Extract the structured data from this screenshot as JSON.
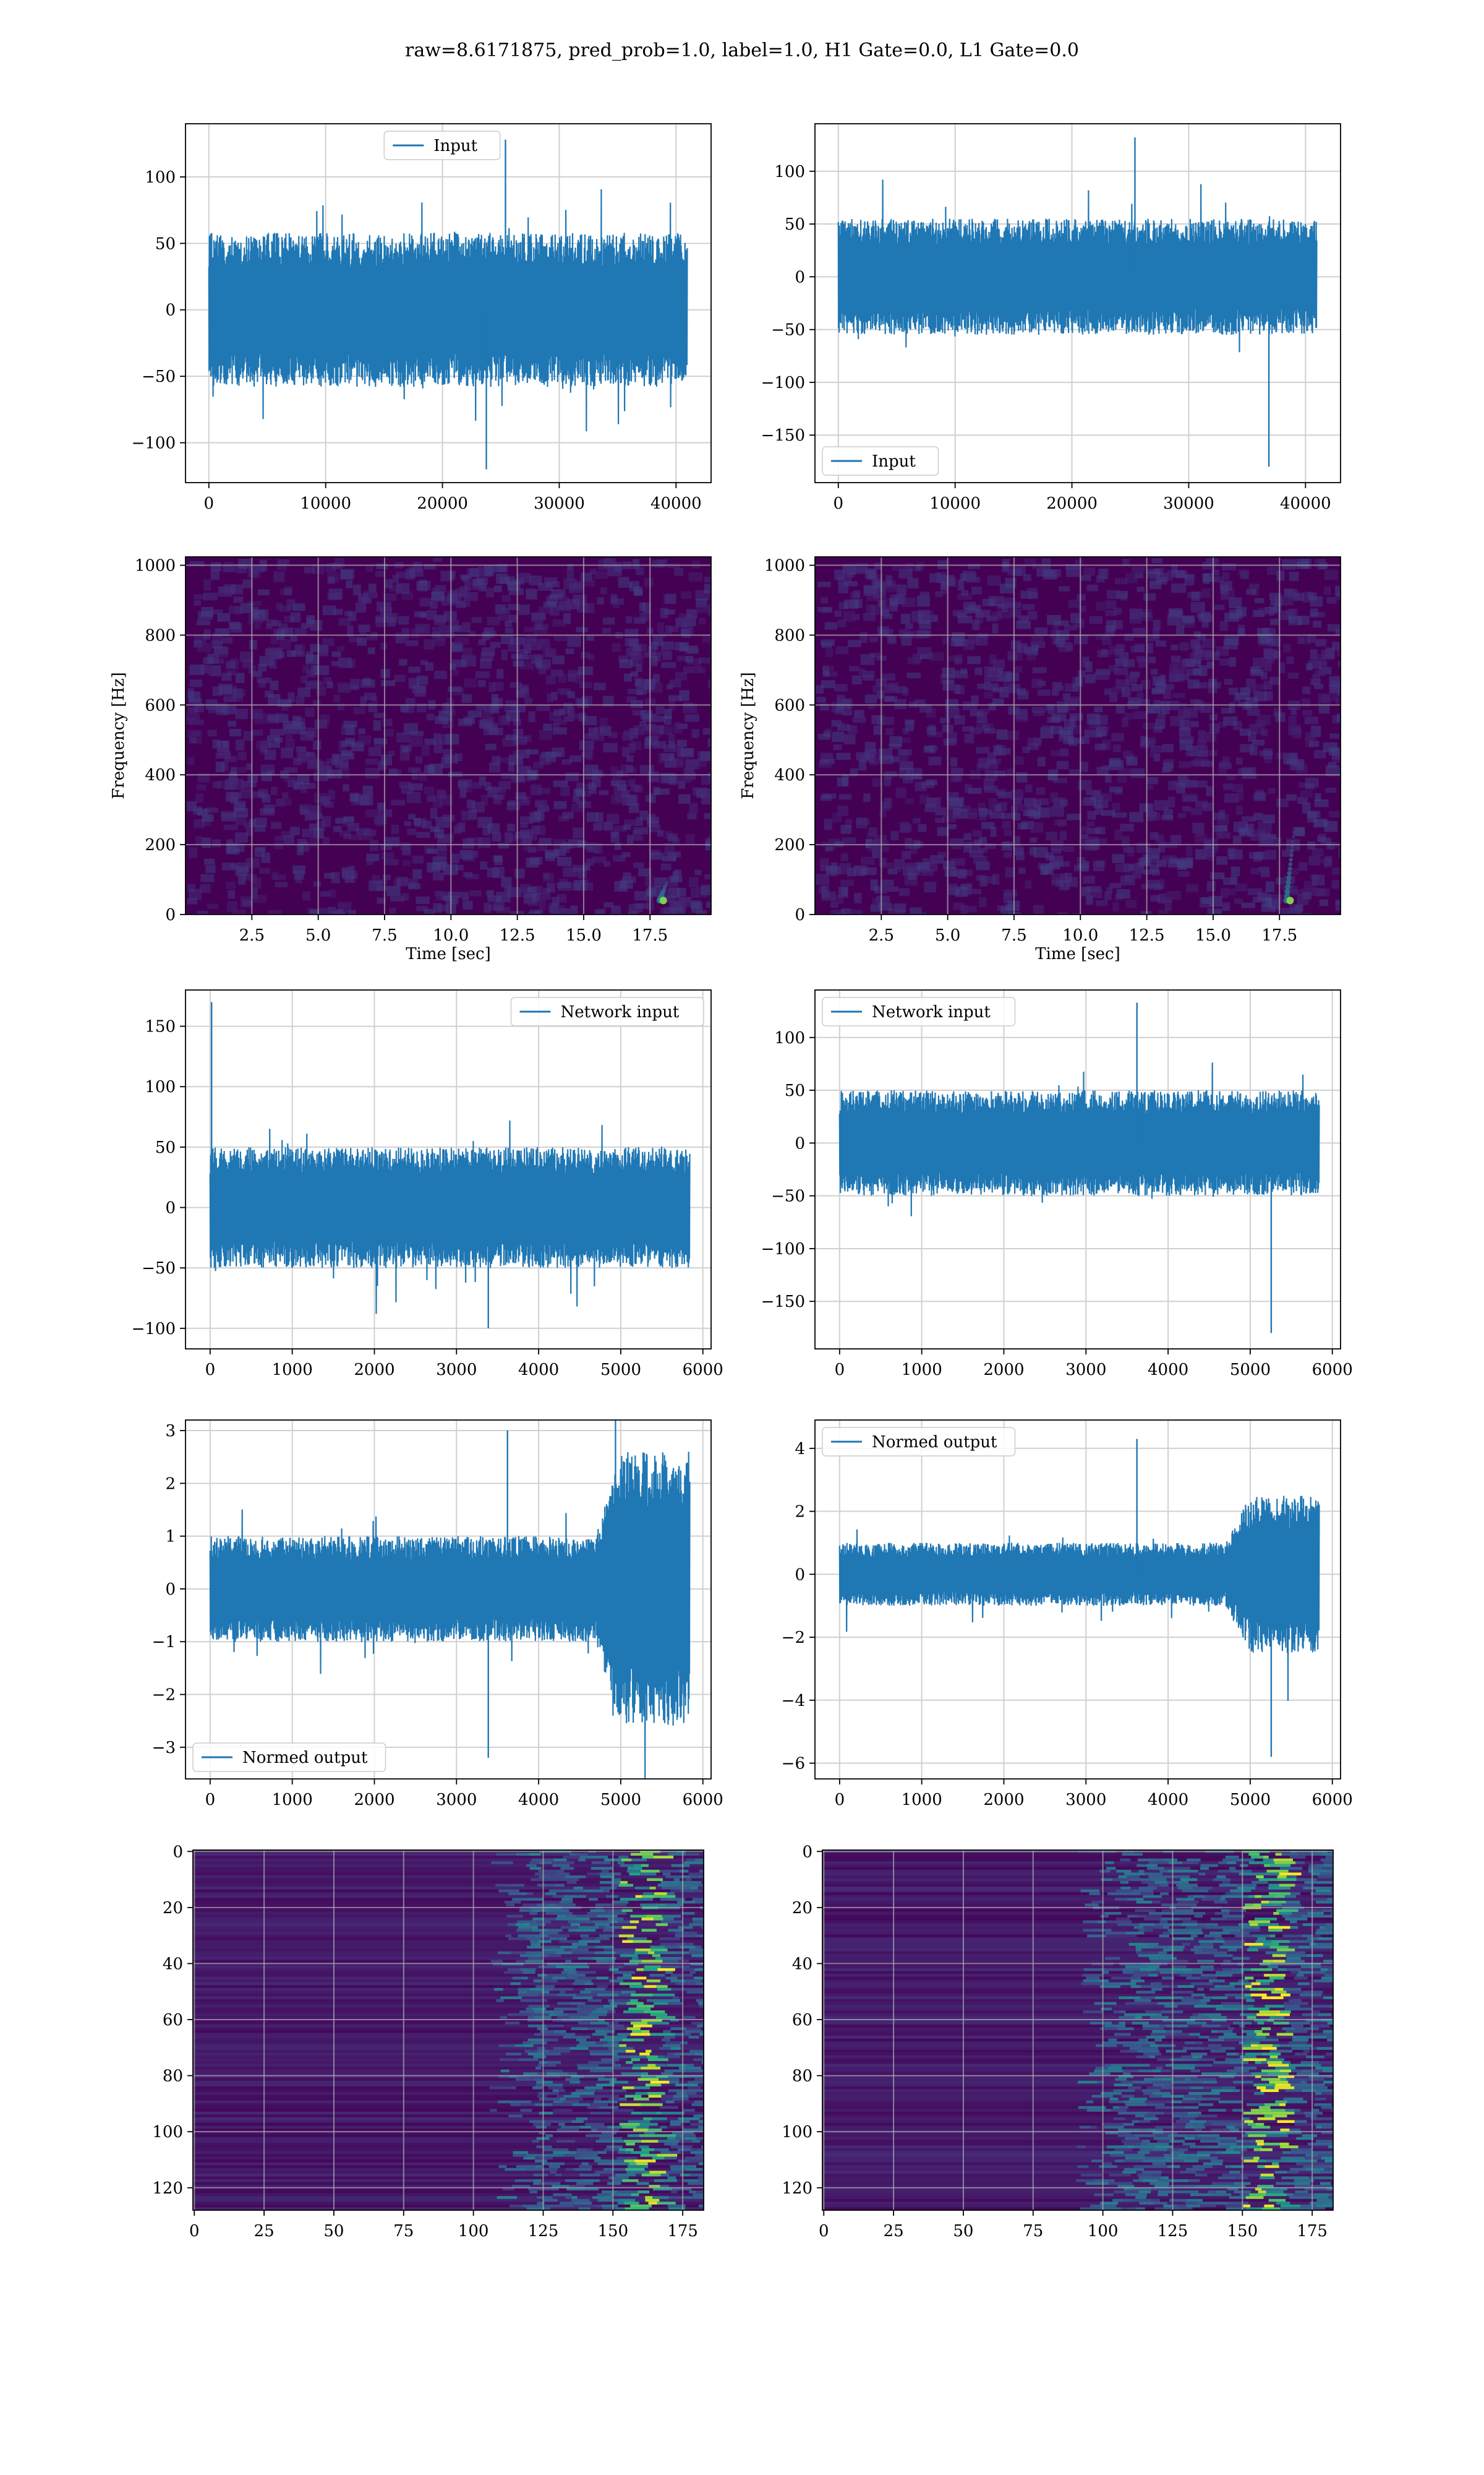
{
  "figure_title": "raw=8.6171875, pred_prob=1.0, label=1.0, H1 Gate=0.0, L1 Gate=0.0",
  "chart_data": [
    {
      "id": "input-h1",
      "type": "line",
      "title": "",
      "xlabel": "",
      "ylabel": "",
      "xlim": [
        -2000,
        43000
      ],
      "ylim": [
        -130,
        140
      ],
      "xticks": [
        0,
        10000,
        20000,
        30000,
        40000
      ],
      "yticks": [
        -100,
        -50,
        0,
        50,
        100
      ],
      "legend": "top-center",
      "grid": true,
      "color": "#1f77b4",
      "series": [
        {
          "name": "Input",
          "x_range": [
            0,
            40960
          ],
          "band": [
            -58,
            58
          ],
          "max": 128,
          "min": -120
        }
      ]
    },
    {
      "id": "input-l1",
      "type": "line",
      "title": "",
      "xlabel": "",
      "ylabel": "",
      "xlim": [
        -2000,
        43000
      ],
      "ylim": [
        -195,
        145
      ],
      "xticks": [
        0,
        10000,
        20000,
        30000,
        40000
      ],
      "yticks": [
        -150,
        -100,
        -50,
        0,
        50,
        100
      ],
      "legend": "bottom-left",
      "grid": true,
      "color": "#1f77b4",
      "series": [
        {
          "name": "Input",
          "x_range": [
            0,
            40960
          ],
          "band": [
            -55,
            55
          ],
          "max": 132,
          "min": -180
        }
      ]
    },
    {
      "id": "spec-h1",
      "type": "heatmap",
      "title": "",
      "xlabel": "Time [sec]",
      "ylabel": "Frequency [Hz]",
      "xlim": [
        0,
        19.8
      ],
      "ylim": [
        0,
        1024
      ],
      "xticks": [
        2.5,
        5.0,
        7.5,
        10.0,
        12.5,
        15.0,
        17.5
      ],
      "xticklabels": [
        "2.5",
        "5.0",
        "7.5",
        "10.0",
        "12.5",
        "15.0",
        "17.5"
      ],
      "yticks": [
        0,
        200,
        400,
        600,
        800,
        1000
      ],
      "grid": true,
      "colormap": "viridis",
      "hotspot": {
        "t": 18.0,
        "f": 40
      }
    },
    {
      "id": "spec-l1",
      "type": "heatmap",
      "title": "",
      "xlabel": "Time [sec]",
      "ylabel": "Frequency [Hz]",
      "xlim": [
        0,
        19.8
      ],
      "ylim": [
        0,
        1024
      ],
      "xticks": [
        2.5,
        5.0,
        7.5,
        10.0,
        12.5,
        15.0,
        17.5
      ],
      "xticklabels": [
        "2.5",
        "5.0",
        "7.5",
        "10.0",
        "12.5",
        "15.0",
        "17.5"
      ],
      "yticks": [
        0,
        200,
        400,
        600,
        800,
        1000
      ],
      "grid": true,
      "colormap": "viridis",
      "hotspot": {
        "t": 17.9,
        "f": 40
      }
    },
    {
      "id": "net-h1",
      "type": "line",
      "title": "",
      "xlabel": "",
      "ylabel": "",
      "xlim": [
        -300,
        6100
      ],
      "ylim": [
        -117,
        180
      ],
      "xticks": [
        0,
        1000,
        2000,
        3000,
        4000,
        5000,
        6000
      ],
      "yticks": [
        -100,
        -50,
        0,
        50,
        100,
        150
      ],
      "legend": "top-right",
      "grid": true,
      "color": "#1f77b4",
      "series": [
        {
          "name": "Network input",
          "x_range": [
            0,
            5840
          ],
          "band": [
            -50,
            50
          ],
          "max": 170,
          "min": -100
        }
      ]
    },
    {
      "id": "net-l1",
      "type": "line",
      "title": "",
      "xlabel": "",
      "ylabel": "",
      "xlim": [
        -300,
        6100
      ],
      "ylim": [
        -195,
        145
      ],
      "xticks": [
        0,
        1000,
        2000,
        3000,
        4000,
        5000,
        6000
      ],
      "yticks": [
        -150,
        -100,
        -50,
        0,
        50,
        100
      ],
      "legend": "top-left",
      "grid": true,
      "color": "#1f77b4",
      "series": [
        {
          "name": "Network input",
          "x_range": [
            0,
            5840
          ],
          "band": [
            -50,
            50
          ],
          "max": 133,
          "min": -180
        }
      ]
    },
    {
      "id": "norm-h1",
      "type": "line",
      "title": "",
      "xlabel": "",
      "ylabel": "",
      "xlim": [
        -300,
        6100
      ],
      "ylim": [
        -3.6,
        3.2
      ],
      "xticks": [
        0,
        1000,
        2000,
        3000,
        4000,
        5000,
        6000
      ],
      "yticks": [
        -3,
        -2,
        -1,
        0,
        1,
        2,
        3
      ],
      "legend": "bottom-left",
      "grid": true,
      "color": "#1f77b4",
      "series": [
        {
          "name": "Normed output",
          "x_range": [
            0,
            5840
          ],
          "band": [
            -1,
            1
          ],
          "burst_band": [
            -2.6,
            2.6
          ],
          "burst_start": 4700,
          "max": 3.0,
          "min": -3.2
        }
      ]
    },
    {
      "id": "norm-l1",
      "type": "line",
      "title": "",
      "xlabel": "",
      "ylabel": "",
      "xlim": [
        -300,
        6100
      ],
      "ylim": [
        -6.5,
        4.9
      ],
      "xticks": [
        0,
        1000,
        2000,
        3000,
        4000,
        5000,
        6000
      ],
      "yticks": [
        -6,
        -4,
        -2,
        0,
        2,
        4
      ],
      "legend": "top-left",
      "grid": true,
      "color": "#1f77b4",
      "series": [
        {
          "name": "Normed output",
          "x_range": [
            0,
            5840
          ],
          "band": [
            -1,
            1
          ],
          "burst_band": [
            -2.5,
            2.5
          ],
          "burst_start": 4700,
          "max": 4.3,
          "min": -5.8
        }
      ]
    },
    {
      "id": "feat-h1",
      "type": "heatmap",
      "title": "",
      "xlabel": "",
      "ylabel": "",
      "xlim": [
        -0.5,
        182.5
      ],
      "ylim": [
        128,
        -0.5
      ],
      "xticks": [
        0,
        25,
        50,
        75,
        100,
        125,
        150,
        175
      ],
      "yticks": [
        0,
        20,
        40,
        60,
        80,
        100,
        120
      ],
      "grid": true,
      "colormap": "viridis",
      "activity_start": 125,
      "hot_column": 160
    },
    {
      "id": "feat-l1",
      "type": "heatmap",
      "title": "",
      "xlabel": "",
      "ylabel": "",
      "xlim": [
        -0.5,
        182.5
      ],
      "ylim": [
        128,
        -0.5
      ],
      "xticks": [
        0,
        25,
        50,
        75,
        100,
        125,
        150,
        175
      ],
      "yticks": [
        0,
        20,
        40,
        60,
        80,
        100,
        120
      ],
      "grid": true,
      "colormap": "viridis",
      "activity_start": 110,
      "hot_column": 158
    }
  ]
}
